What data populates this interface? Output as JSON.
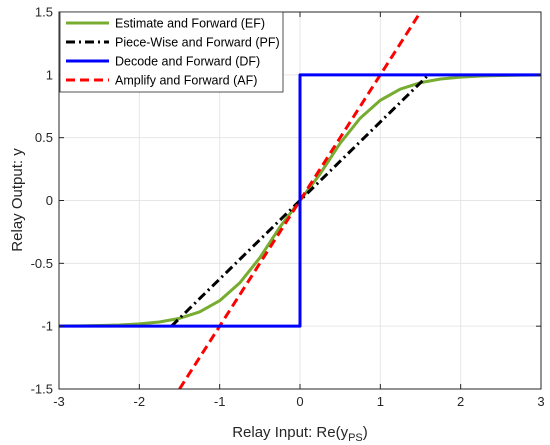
{
  "chart_data": {
    "type": "line",
    "title": "",
    "xlabel": "Relay Input: Re(y",
    "xlabel_sub": "PS",
    "xlabel_close": ")",
    "ylabel": "Relay Output: y",
    "xlim": [
      -3,
      3
    ],
    "ylim": [
      -1.5,
      1.5
    ],
    "xticks": [
      -3,
      -2,
      -1,
      0,
      1,
      2,
      3
    ],
    "yticks": [
      -1.5,
      -1,
      -0.5,
      0,
      0.5,
      1,
      1.5
    ],
    "grid": true,
    "legend_position": "top-left",
    "series": [
      {
        "name": "Estimate and Forward (EF)",
        "color": "#77AC30",
        "style": "solid",
        "x": [
          -3,
          -2.75,
          -2.5,
          -2.25,
          -2,
          -1.75,
          -1.5,
          -1.25,
          -1,
          -0.75,
          -0.5,
          -0.25,
          0,
          0.25,
          0.5,
          0.75,
          1,
          1.25,
          1.5,
          1.75,
          2,
          2.25,
          2.5,
          2.75,
          3
        ],
        "values": [
          -0.9987,
          -0.9975,
          -0.9951,
          -0.9906,
          -0.9822,
          -0.9666,
          -0.9379,
          -0.8864,
          -0.7977,
          -0.6556,
          -0.4559,
          -0.2112,
          0,
          0.2112,
          0.4559,
          0.6556,
          0.7977,
          0.8864,
          0.9379,
          0.9666,
          0.9822,
          0.9906,
          0.9951,
          0.9975,
          0.9987
        ]
      },
      {
        "name": "Piece-Wise and Forward (PF)",
        "color": "#000000",
        "style": "dashdot",
        "x": [
          -1.6,
          1.6
        ],
        "values": [
          -1,
          1
        ]
      },
      {
        "name": "Decode and Forward (DF)",
        "color": "#0000FF",
        "style": "solid",
        "x": [
          -3,
          0,
          0,
          3
        ],
        "values": [
          -1,
          -1,
          1,
          1
        ]
      },
      {
        "name": "Amplify and Forward (AF)",
        "color": "#FF0000",
        "style": "dashed",
        "x": [
          -1.5,
          1.5
        ],
        "values": [
          -1.5,
          1.5
        ]
      }
    ]
  }
}
